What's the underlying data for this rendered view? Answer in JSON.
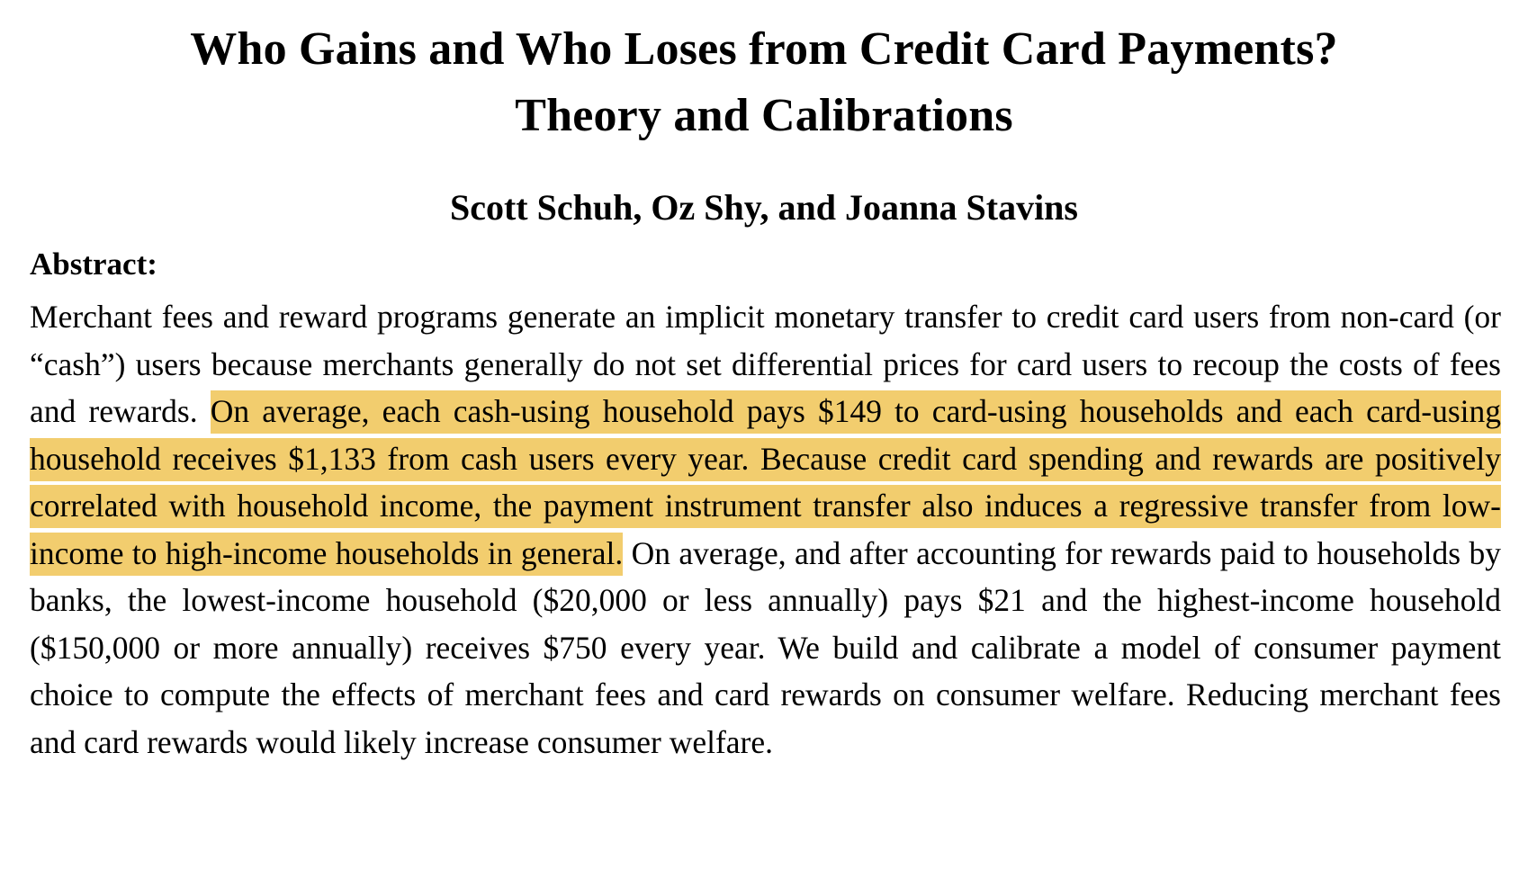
{
  "paper": {
    "title_line1": "Who Gains and Who Loses from Credit Card Payments?",
    "title_line2": "Theory and Calibrations",
    "authors": "Scott Schuh, Oz Shy, and Joanna Stavins",
    "abstract_label": "Abstract:",
    "abstract_before_highlight": "Merchant fees and reward programs generate an implicit monetary transfer to credit card users from non-card (or “cash”) users because merchants generally do not set differential prices for card users to recoup the costs of fees and rewards. ",
    "abstract_highlight": "On average, each cash-using household pays $149 to card-using households and each card-using household receives $1,133 from cash users every year. Because credit card spending and rewards are positively correlated with household income, the payment instrument transfer also induces a regressive transfer from low-income to high-income households in general.",
    "abstract_after_highlight": " On average, and after accounting for rewards paid to households by banks, the lowest-income household ($20,000 or less annually) pays $21 and the highest-income household ($150,000 or more annually) receives $750 every year. We build and calibrate a model of consumer payment choice to compute the effects of merchant fees and card rewards on consumer welfare. Reducing merchant fees and card rewards would likely increase consumer welfare."
  },
  "colors": {
    "highlight": "#f2cd6e",
    "text": "#000000",
    "background": "#ffffff"
  }
}
